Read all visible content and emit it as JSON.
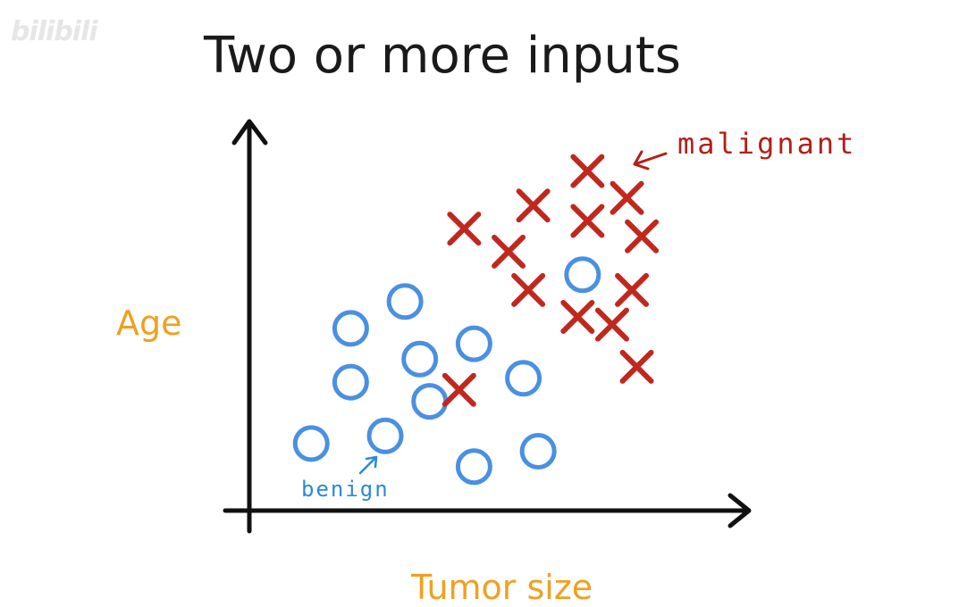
{
  "watermark": "bilibili",
  "chart_data": {
    "type": "scatter",
    "title": "Two or more inputs",
    "xlabel": "Tumor size",
    "ylabel": "Age",
    "grid": false,
    "legend": "none",
    "xlim": [
      0,
      100
    ],
    "ylim": [
      0,
      100
    ],
    "series": [
      {
        "name": "benign",
        "marker": "circle",
        "color": "#4a90e2",
        "points": [
          [
            12,
            17
          ],
          [
            20,
            47
          ],
          [
            20,
            33
          ],
          [
            31,
            54
          ],
          [
            34,
            39
          ],
          [
            36,
            28
          ],
          [
            27,
            19
          ],
          [
            45,
            43
          ],
          [
            55,
            34
          ],
          [
            58,
            15
          ],
          [
            45,
            11
          ],
          [
            67,
            61
          ]
        ]
      },
      {
        "name": "malignant",
        "marker": "x",
        "color": "#c0281e",
        "points": [
          [
            43,
            73
          ],
          [
            52,
            67
          ],
          [
            56,
            57
          ],
          [
            57,
            79
          ],
          [
            66,
            50
          ],
          [
            68,
            88
          ],
          [
            68,
            75
          ],
          [
            73,
            48
          ],
          [
            76,
            81
          ],
          [
            77,
            57
          ],
          [
            79,
            71
          ],
          [
            78,
            37
          ],
          [
            42,
            31
          ]
        ]
      }
    ],
    "annotations": [
      {
        "text": "malignant",
        "color": "#b02018"
      },
      {
        "text": "benign",
        "color": "#2a8ad8"
      }
    ]
  }
}
